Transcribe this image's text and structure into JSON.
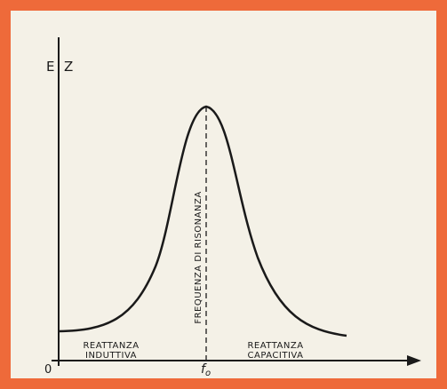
{
  "axes": {
    "y_labels": [
      "E",
      "Z"
    ],
    "origin": "0",
    "x_marker": {
      "main": "f",
      "subscript": "o"
    }
  },
  "resonance_label": "FREQUENZA DI RISONANZA",
  "regions": [
    {
      "lines": [
        "REATTANZA",
        "INDUTTIVA"
      ]
    },
    {
      "lines": [
        "REATTANZA",
        "CAPACITIVA"
      ]
    }
  ]
}
